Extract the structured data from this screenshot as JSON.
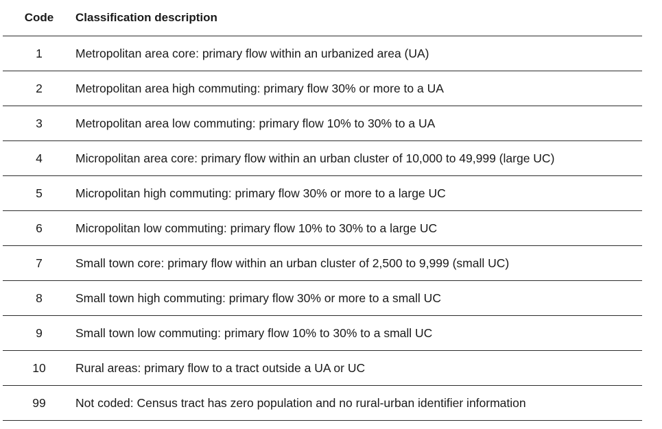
{
  "table": {
    "headers": {
      "code": "Code",
      "description": "Classification description"
    },
    "rows": [
      {
        "code": "1",
        "description": "Metropolitan area core: primary flow within an urbanized area (UA)"
      },
      {
        "code": "2",
        "description": "Metropolitan area high commuting: primary flow 30% or more to a UA"
      },
      {
        "code": "3",
        "description": "Metropolitan area low commuting: primary flow 10% to 30% to a UA"
      },
      {
        "code": "4",
        "description": "Micropolitan area core: primary flow within an urban cluster of 10,000 to 49,999 (large UC)"
      },
      {
        "code": "5",
        "description": "Micropolitan high commuting: primary flow 30% or more to a large UC"
      },
      {
        "code": "6",
        "description": "Micropolitan low commuting: primary flow 10% to 30% to a large UC"
      },
      {
        "code": "7",
        "description": "Small town core: primary flow within an urban cluster of 2,500 to 9,999 (small UC)"
      },
      {
        "code": "8",
        "description": "Small town high commuting: primary flow 30% or more to a small UC"
      },
      {
        "code": "9",
        "description": "Small town low commuting: primary flow 10% to 30% to a small UC"
      },
      {
        "code": "10",
        "description": "Rural areas: primary flow to a tract outside a UA or UC"
      },
      {
        "code": "99",
        "description": "Not coded: Census tract has zero population and no rural-urban identifier information"
      }
    ]
  }
}
